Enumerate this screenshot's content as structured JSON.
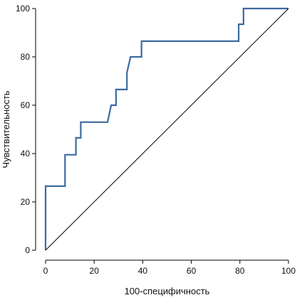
{
  "chart_data": {
    "type": "line",
    "title": "",
    "xlabel": "100-специфичность",
    "ylabel": "Чувствительность",
    "xlim": [
      0,
      100
    ],
    "ylim": [
      0,
      100
    ],
    "x_ticks": [
      "0",
      "20",
      "40",
      "60",
      "80",
      "100"
    ],
    "y_ticks": [
      "0",
      "20",
      "40",
      "60",
      "80",
      "100"
    ],
    "grid": false,
    "legend": "none",
    "series": [
      {
        "color": "#3e6aa0",
        "points": [
          [
            0,
            0
          ],
          [
            0,
            26.5
          ],
          [
            8,
            26.5
          ],
          [
            8,
            39.5
          ],
          [
            12.5,
            39.5
          ],
          [
            12.5,
            46.5
          ],
          [
            14.5,
            46.5
          ],
          [
            14.5,
            53
          ],
          [
            25.5,
            53
          ],
          [
            27,
            60
          ],
          [
            29,
            60
          ],
          [
            29,
            66.5
          ],
          [
            33.5,
            66.5
          ],
          [
            33.5,
            73.5
          ],
          [
            35,
            80
          ],
          [
            39.5,
            80
          ],
          [
            39.5,
            86.5
          ],
          [
            79.5,
            86.5
          ],
          [
            79.5,
            93.5
          ],
          [
            81.5,
            93.5
          ],
          [
            81.5,
            100
          ],
          [
            100,
            100
          ]
        ]
      },
      {
        "color": "#000000",
        "points": [
          [
            0,
            0
          ],
          [
            100,
            100
          ]
        ]
      }
    ]
  }
}
